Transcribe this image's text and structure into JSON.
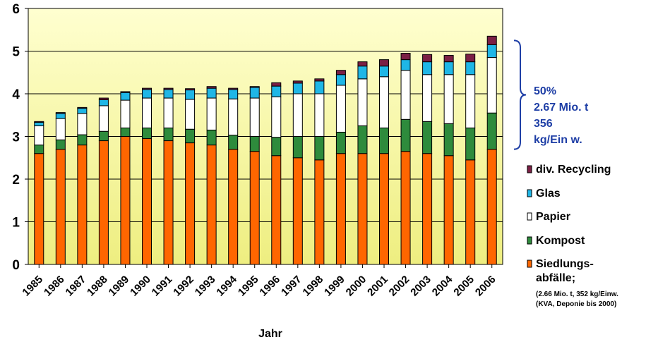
{
  "chart_data": {
    "type": "bar",
    "stacked": true,
    "xlabel": "Jahr",
    "ylabel": "",
    "ylim": [
      0,
      6
    ],
    "yticks": [
      "0",
      "1",
      "2",
      "3",
      "4",
      "5",
      "6"
    ],
    "grid": "horizontal",
    "legend_position": "right",
    "categories": [
      "1985",
      "1986",
      "1987",
      "1988",
      "1989",
      "1990",
      "1991",
      "1992",
      "1993",
      "1994",
      "1995",
      "1996",
      "1997",
      "1998",
      "1999",
      "2000",
      "2001",
      "2002",
      "2003",
      "2004",
      "2005",
      "2006"
    ],
    "series": [
      {
        "name": "Siedlungs-abfälle;",
        "color": "#ff6600",
        "values": [
          2.6,
          2.7,
          2.8,
          2.9,
          3.0,
          2.95,
          2.9,
          2.85,
          2.8,
          2.7,
          2.65,
          2.55,
          2.5,
          2.45,
          2.6,
          2.6,
          2.6,
          2.65,
          2.6,
          2.55,
          2.45,
          2.7
        ]
      },
      {
        "name": "Kompost",
        "color": "#2e8b3c",
        "values": [
          0.2,
          0.22,
          0.24,
          0.22,
          0.2,
          0.25,
          0.3,
          0.32,
          0.35,
          0.33,
          0.35,
          0.43,
          0.5,
          0.55,
          0.5,
          0.65,
          0.6,
          0.75,
          0.75,
          0.75,
          0.75,
          0.85
        ]
      },
      {
        "name": "Papier",
        "color": "#ffffff",
        "values": [
          0.45,
          0.5,
          0.5,
          0.6,
          0.65,
          0.7,
          0.7,
          0.7,
          0.75,
          0.85,
          0.9,
          0.95,
          1.0,
          1.0,
          1.1,
          1.1,
          1.2,
          1.15,
          1.1,
          1.15,
          1.25,
          1.3
        ]
      },
      {
        "name": "Glas",
        "color": "#1fb6e6",
        "values": [
          0.08,
          0.12,
          0.12,
          0.14,
          0.18,
          0.2,
          0.2,
          0.22,
          0.23,
          0.22,
          0.25,
          0.25,
          0.25,
          0.3,
          0.25,
          0.3,
          0.25,
          0.25,
          0.3,
          0.3,
          0.3,
          0.3
        ]
      },
      {
        "name": "div. Recycling",
        "color": "#7b1f45",
        "values": [
          0.02,
          0.02,
          0.02,
          0.04,
          0.02,
          0.03,
          0.03,
          0.03,
          0.04,
          0.03,
          0.02,
          0.08,
          0.05,
          0.05,
          0.1,
          0.1,
          0.15,
          0.15,
          0.17,
          0.15,
          0.18,
          0.2
        ]
      }
    ],
    "legend_note_lines": [
      "(2.66 Mio. t, 352 kg/Einw.",
      "(KVA, Deponie bis 2000)"
    ],
    "annotation": {
      "lines": [
        "50%",
        "2.67 Mio. t",
        "356",
        "kg/Ein w."
      ],
      "color": "#1f3fa6"
    },
    "plot_background_top": "#ffffd0",
    "plot_background_bottom": "#eeee80"
  }
}
